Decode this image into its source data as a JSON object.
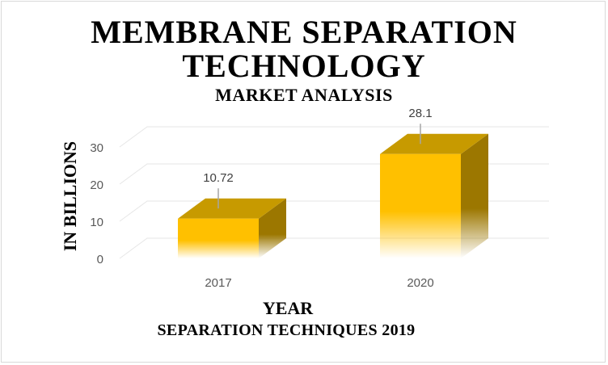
{
  "title_line1": "MEMBRANE SEPARATION",
  "title_line2": "TECHNOLOGY",
  "subtitle": "MARKET ANALYSIS",
  "ylabel": "IN BILLIONS",
  "xlabel_line1": "YEAR",
  "xlabel_line2": "SEPARATION TECHNIQUES 2019",
  "chart_data": {
    "type": "bar",
    "categories": [
      "2017",
      "2020"
    ],
    "values": [
      10.72,
      28.1
    ],
    "data_labels": [
      "10.72",
      "28.1"
    ],
    "yticks": [
      "0",
      "10",
      "20",
      "30"
    ],
    "ylim": [
      0,
      30
    ],
    "grid": true,
    "legend": "none",
    "style": "3d",
    "colors": {
      "front": "#FFC000",
      "top": "#C79A00",
      "side": "#9C7700",
      "grid": "#e6e6e6",
      "tick": "#595959"
    }
  }
}
